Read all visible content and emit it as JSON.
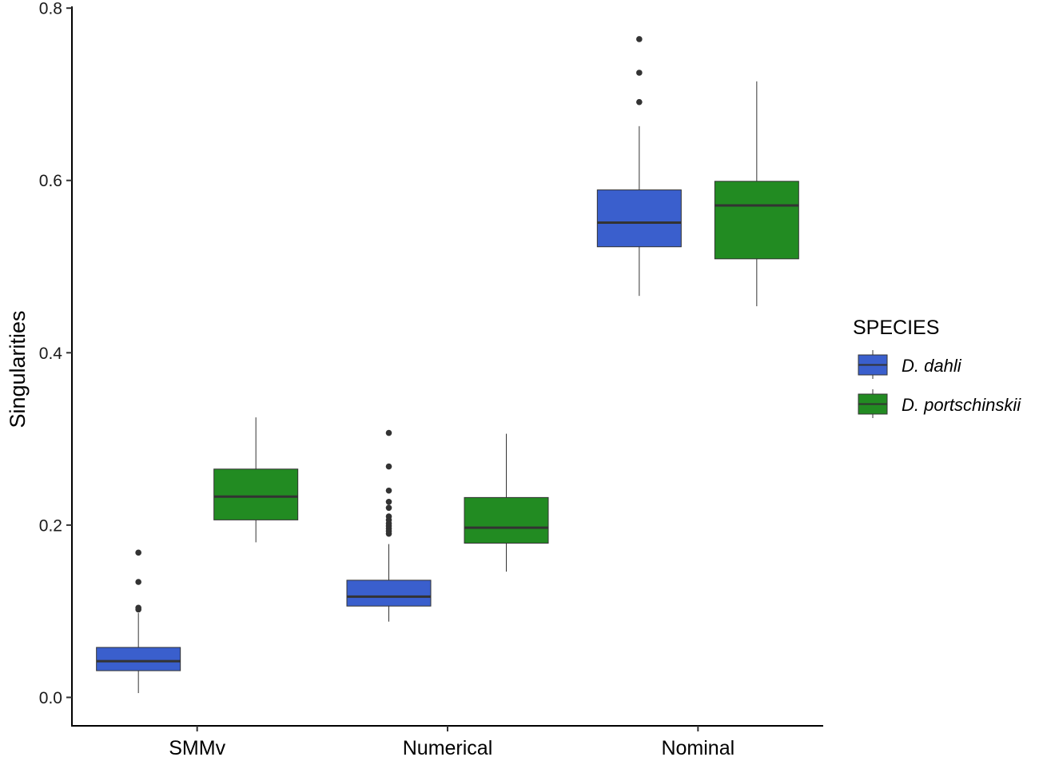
{
  "chart_data": {
    "type": "box",
    "ylabel": "Singularities",
    "xlabel": "",
    "ylim": [
      -0.033,
      0.802
    ],
    "yticks": [
      "0.0",
      "0.2",
      "0.4",
      "0.6",
      "0.8"
    ],
    "categories": [
      "SMMv",
      "Numerical",
      "Nominal"
    ],
    "grid": false,
    "legend": {
      "title": "SPECIES",
      "position": "right",
      "entries": [
        "D. dahli",
        "D. portschinskii"
      ]
    },
    "series": [
      {
        "name": "D. dahli",
        "color": "#3a5fcd",
        "boxes": [
          {
            "category": "SMMv",
            "whisker_low": 0.005,
            "q1": 0.031,
            "median": 0.042,
            "q3": 0.058,
            "whisker_high": 0.098,
            "outliers": [
              0.102,
              0.104,
              0.134,
              0.168
            ]
          },
          {
            "category": "Numerical",
            "whisker_low": 0.088,
            "q1": 0.106,
            "median": 0.117,
            "q3": 0.136,
            "whisker_high": 0.178,
            "outliers": [
              0.19,
              0.193,
              0.196,
              0.199,
              0.202,
              0.206,
              0.21,
              0.22,
              0.227,
              0.24,
              0.268,
              0.307
            ]
          },
          {
            "category": "Nominal",
            "whisker_low": 0.466,
            "q1": 0.523,
            "median": 0.551,
            "q3": 0.589,
            "whisker_high": 0.663,
            "outliers": [
              0.691,
              0.725,
              0.764
            ]
          }
        ]
      },
      {
        "name": "D. portschinskii",
        "color": "#228b22",
        "boxes": [
          {
            "category": "SMMv",
            "whisker_low": 0.18,
            "q1": 0.206,
            "median": 0.233,
            "q3": 0.265,
            "whisker_high": 0.325,
            "outliers": []
          },
          {
            "category": "Numerical",
            "whisker_low": 0.146,
            "q1": 0.179,
            "median": 0.197,
            "q3": 0.232,
            "whisker_high": 0.306,
            "outliers": []
          },
          {
            "category": "Nominal",
            "whisker_low": 0.454,
            "q1": 0.509,
            "median": 0.571,
            "q3": 0.599,
            "whisker_high": 0.715,
            "outliers": []
          }
        ]
      }
    ]
  }
}
